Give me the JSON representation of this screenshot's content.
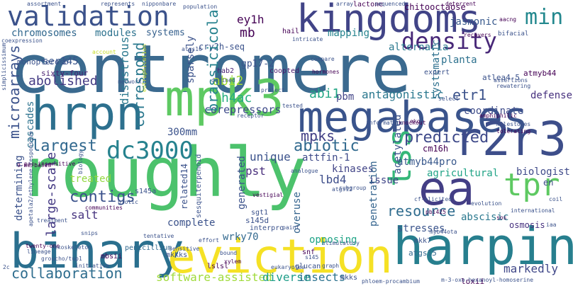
{
  "cloud": {
    "palette": {
      "dark_purple": "#440154",
      "indigo": "#3b528b",
      "teal": "#21918c",
      "green": "#5ec962",
      "yellow": "#fde725"
    },
    "words": [
      {
        "text": "centromere",
        "color": "#3b6a8f"
      },
      {
        "text": "roughly",
        "color": "#4cc26c"
      },
      {
        "text": "binary",
        "color": "#2a6f8e"
      },
      {
        "text": "harpin",
        "color": "#277f8e"
      },
      {
        "text": "eviction",
        "color": "#f5e125"
      },
      {
        "text": "megabases",
        "color": "#3a548c"
      },
      {
        "text": "hrpn",
        "color": "#2d708e"
      },
      {
        "text": "mpk3",
        "color": "#5ec962"
      },
      {
        "text": "kingdoms",
        "color": "#414487"
      },
      {
        "text": "validation",
        "color": "#3b528b"
      },
      {
        "text": "r2r3",
        "color": "#3d4e8a"
      },
      {
        "text": "ea",
        "color": "#433e85"
      },
      {
        "text": "tss",
        "color": "#35b779"
      },
      {
        "text": "tpr",
        "color": "#5ec962"
      },
      {
        "text": "dc3000",
        "color": "#26828e"
      },
      {
        "text": "density",
        "color": "#482878"
      },
      {
        "text": "min",
        "color": "#23888e"
      },
      {
        "text": "chromosomes",
        "color": "#31688e"
      },
      {
        "text": "modules",
        "color": "#2c728e"
      },
      {
        "text": "systems",
        "color": "#35608d"
      },
      {
        "text": "contigs",
        "color": "#3b528b"
      },
      {
        "text": "predicted",
        "color": "#3e4989"
      },
      {
        "text": "abiotic",
        "color": "#30698e"
      },
      {
        "text": "collaboration",
        "color": "#2e6d8e"
      },
      {
        "text": "resource",
        "color": "#2f6c8e"
      },
      {
        "text": "largest",
        "color": "#31688e"
      },
      {
        "text": "mpks",
        "color": "#423f85"
      },
      {
        "text": "corepressors",
        "color": "#3e4a89"
      },
      {
        "text": "abolished",
        "color": "#443a83"
      },
      {
        "text": "software-assisted",
        "color": "#9fda3a"
      },
      {
        "text": "diverse",
        "color": "#1f9e89"
      },
      {
        "text": "insects",
        "color": "#2c728e"
      },
      {
        "text": "markedly",
        "color": "#3f4788"
      },
      {
        "text": "complete",
        "color": "#3b528b"
      },
      {
        "text": "stresses",
        "color": "#3a538b"
      },
      {
        "text": "agricultural",
        "color": "#20a386"
      },
      {
        "text": "biologist",
        "color": "#3e4989"
      },
      {
        "text": "abscisic",
        "color": "#2a788e"
      },
      {
        "text": "etr1",
        "color": "#3b528b"
      },
      {
        "text": "defense",
        "color": "#46307e"
      },
      {
        "text": "coordinate",
        "color": "#3e4c8a"
      },
      {
        "text": "antagonistic",
        "color": "#2a788e"
      },
      {
        "text": "abi1",
        "color": "#22a785"
      },
      {
        "text": "abi2",
        "color": "#a2da37"
      },
      {
        "text": "pbm",
        "color": "#414487"
      },
      {
        "text": "h4ac",
        "color": "#27ad81"
      },
      {
        "text": "attfin-1",
        "color": "#3e4a89"
      },
      {
        "text": "atmyb44pro",
        "color": "#38588c"
      },
      {
        "text": "kinases",
        "color": "#414487"
      },
      {
        "text": "pst",
        "color": "#472d7b"
      },
      {
        "text": "lbd4",
        "color": "#3d4d8a"
      },
      {
        "text": "unique",
        "color": "#3b528b"
      },
      {
        "text": "issue",
        "color": "#404588"
      },
      {
        "text": "treated",
        "color": "#93d741"
      },
      {
        "text": "salt",
        "color": "#46337f"
      },
      {
        "text": "mb",
        "color": "#440154"
      },
      {
        "text": "ser145",
        "color": "#39558c"
      },
      {
        "text": "ey1h",
        "color": "#440154"
      },
      {
        "text": "300mm",
        "color": "#3b528b"
      },
      {
        "text": "wrky70",
        "color": "#31688e"
      },
      {
        "text": "opposing",
        "color": "#20a486"
      },
      {
        "text": "overuse",
        "color": "#33638d"
      },
      {
        "text": "mapping",
        "color": "#25848e"
      },
      {
        "text": "alternaria",
        "color": "#2a788e"
      },
      {
        "text": "planta",
        "color": "#2d718e"
      },
      {
        "text": "jasmonic",
        "color": "#38598c"
      },
      {
        "text": "chitooctaose",
        "color": "#440154"
      },
      {
        "text": "gp17-2",
        "color": "#3b528b"
      },
      {
        "text": "coopted",
        "color": "#481a6c"
      },
      {
        "text": "hab2",
        "color": "#482173"
      },
      {
        "text": "cry2h-seq",
        "color": "#3b528b"
      },
      {
        "text": "sparsely",
        "color": "#3b528b"
      },
      {
        "text": "correspond",
        "color": "#2a788e"
      },
      {
        "text": "disastrous",
        "color": "#2a788e"
      },
      {
        "text": "brassicicola",
        "color": "#26828e"
      },
      {
        "text": "microarrays",
        "color": "#3b528b"
      },
      {
        "text": "cascades",
        "color": "#2c728e"
      },
      {
        "text": "determining",
        "color": "#3b528b"
      },
      {
        "text": "large-scale",
        "color": "#443983"
      },
      {
        "text": "generated",
        "color": "#3b528b"
      },
      {
        "text": "acetylated",
        "color": "#3b528b"
      },
      {
        "text": "penetration",
        "color": "#33638d"
      },
      {
        "text": "systematic",
        "color": "#2d708e"
      },
      {
        "text": "related14",
        "color": "#3b528b"
      },
      {
        "text": "sixty-four",
        "color": "#481f70"
      },
      {
        "text": "monopteros6",
        "color": "#3b528b"
      },
      {
        "text": "atlea4-5",
        "color": "#3b528b"
      },
      {
        "text": "atmyb44",
        "color": "#440154"
      },
      {
        "text": "cm16h",
        "color": "#440154"
      },
      {
        "text": "osmosis",
        "color": "#46307e"
      },
      {
        "text": "atgs15",
        "color": "#31688e"
      },
      {
        "text": "mkk7",
        "color": "#3b528b"
      },
      {
        "text": "s145d",
        "color": "#3b528b"
      },
      {
        "text": "sgt1",
        "color": "#3b528b"
      },
      {
        "text": "interpro",
        "color": "#3b528b"
      },
      {
        "text": "snf",
        "color": "#440154"
      },
      {
        "text": "s145a",
        "color": "#3b528b"
      },
      {
        "text": "sesquiterpenoid",
        "color": "#3b528b"
      },
      {
        "text": "penicillium",
        "color": "#31688e"
      },
      {
        "text": "mbsii",
        "color": "#440154"
      },
      {
        "text": "mkkks",
        "color": "#3b528b"
      },
      {
        "text": "lslsl",
        "color": "#440154"
      },
      {
        "text": "loxii",
        "color": "#440154"
      },
      {
        "text": "mkks",
        "color": "#3b528b"
      },
      {
        "text": "glucan",
        "color": "#3b528b"
      },
      {
        "text": "en",
        "color": "#3e4989"
      },
      {
        "text": "expert",
        "color": "#3b528b"
      },
      {
        "text": "compare",
        "color": "#3b528b"
      },
      {
        "text": "hormones",
        "color": "#440154"
      },
      {
        "text": "lactone",
        "color": "#440154"
      },
      {
        "text": "nipponbare",
        "color": "#3b528b"
      },
      {
        "text": "population",
        "color": "#3b528b"
      },
      {
        "text": "represents",
        "color": "#3b528b"
      },
      {
        "text": "assortment",
        "color": "#3b528b"
      },
      {
        "text": "sequenced",
        "color": "#3b528b"
      },
      {
        "text": "deterrent",
        "color": "#440154"
      },
      {
        "text": "aacng",
        "color": "#440154"
      },
      {
        "text": "array",
        "color": "#3b528b"
      },
      {
        "text": "hail",
        "color": "#440154"
      },
      {
        "text": "intricate",
        "color": "#3b528b"
      },
      {
        "text": "recovers",
        "color": "#440154"
      },
      {
        "text": "bifacial",
        "color": "#3b528b"
      },
      {
        "text": "coexpression",
        "color": "#3b528b"
      },
      {
        "text": "simplicissimum",
        "color": "#3b528b"
      },
      {
        "text": "knockout",
        "color": "#440154"
      },
      {
        "text": "informatics",
        "color": "#3b528b"
      },
      {
        "text": "receptor",
        "color": "#3b528b"
      },
      {
        "text": "milestones",
        "color": "#3b528b"
      },
      {
        "text": "tolerating",
        "color": "#440154"
      },
      {
        "text": "amphiphilic",
        "color": "#440154"
      },
      {
        "text": "evolution",
        "color": "#3b528b"
      },
      {
        "text": "international",
        "color": "#3b528b"
      },
      {
        "text": "sos",
        "color": "#440154"
      },
      {
        "text": "cf-elicited",
        "color": "#3b528b"
      },
      {
        "text": "pbi425",
        "color": "#440154"
      },
      {
        "text": "myb44ota",
        "color": "#3b528b"
      },
      {
        "text": "m-3-oxo-hexanoyl-homoserine",
        "color": "#3b528b"
      },
      {
        "text": "phloem-procambium",
        "color": "#3b528b"
      },
      {
        "text": "graph",
        "color": "#3b528b"
      },
      {
        "text": "eukaryotes",
        "color": "#3b528b"
      },
      {
        "text": "twenty-one",
        "color": "#440154"
      },
      {
        "text": "exoskeleton",
        "color": "#3b528b"
      },
      {
        "text": "lineage",
        "color": "#3b528b"
      },
      {
        "text": "treatment",
        "color": "#3b528b"
      },
      {
        "text": "snips",
        "color": "#3b528b"
      },
      {
        "text": "initiative",
        "color": "#3b528b"
      },
      {
        "text": "communities",
        "color": "#440154"
      },
      {
        "text": "biotic",
        "color": "#3b528b"
      },
      {
        "text": "tentative",
        "color": "#3b528b"
      },
      {
        "text": "sensitive",
        "color": "#3b528b"
      },
      {
        "text": "bound",
        "color": "#3b528b"
      },
      {
        "text": "xylem",
        "color": "#440154"
      },
      {
        "text": "effort",
        "color": "#3b528b"
      },
      {
        "text": "vestigial",
        "color": "#440154"
      },
      {
        "text": "paint",
        "color": "#3b528b"
      },
      {
        "text": "subgroup",
        "color": "#3b528b"
      },
      {
        "text": "defined",
        "color": "#3b528b"
      },
      {
        "text": "project",
        "color": "#3b528b"
      },
      {
        "text": "network",
        "color": "#3b528b"
      },
      {
        "text": "tested",
        "color": "#3b528b"
      },
      {
        "text": "pac-insensitive",
        "color": "#440154"
      },
      {
        "text": "apetala2/ethylene-responsive",
        "color": "#3b528b"
      },
      {
        "text": "groucho/tup1",
        "color": "#3b528b"
      },
      {
        "text": "s145",
        "color": "#3b528b"
      },
      {
        "text": "eutrophication",
        "color": "#fde725"
      },
      {
        "text": "account",
        "color": "#fde725"
      },
      {
        "text": "stimulatory",
        "color": "#3b528b"
      },
      {
        "text": "analogue",
        "color": "#3b528b"
      },
      {
        "text": "atgs12",
        "color": "#3b528b"
      },
      {
        "text": "atgs16",
        "color": "#3b528b"
      },
      {
        "text": "eko",
        "color": "#440154"
      },
      {
        "text": "select",
        "color": "#3b528b"
      },
      {
        "text": "assertions",
        "color": "#3b528b"
      },
      {
        "text": "rewatering",
        "color": "#3b528b"
      },
      {
        "text": "coil",
        "color": "#3b528b"
      },
      {
        "text": "iaa",
        "color": "#3b528b"
      },
      {
        "text": "2c",
        "color": "#3b528b"
      },
      {
        "text": "9-merbased",
        "color": "#440154"
      },
      {
        "text": "biology",
        "color": "#3b528b"
      }
    ]
  }
}
